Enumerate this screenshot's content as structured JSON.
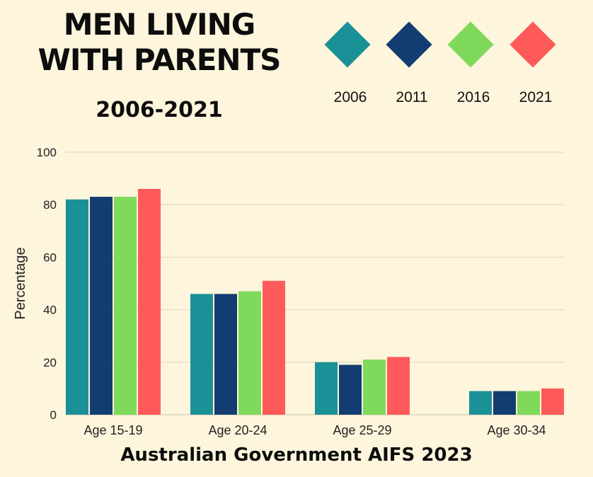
{
  "title": "MEN LIVING WITH PARENTS",
  "subtitle": "2006-2021",
  "source": "Australian Government AIFS 2023",
  "chart_data": {
    "type": "bar",
    "ylabel": "Percentage",
    "xlabel": "",
    "ylim": [
      0,
      100
    ],
    "yticks": [
      0,
      20,
      40,
      60,
      80,
      100
    ],
    "grid": true,
    "legend_position": "top-right",
    "categories": [
      "Age 15-19",
      "Age 20-24",
      "Age 25-29",
      "Age 30-34"
    ],
    "series": [
      {
        "name": "2006",
        "color": "#1a9196",
        "values": [
          82,
          46,
          20,
          9
        ]
      },
      {
        "name": "2011",
        "color": "#133d72",
        "values": [
          83,
          46,
          19,
          9
        ]
      },
      {
        "name": "2016",
        "color": "#7fd95a",
        "values": [
          83,
          47,
          21,
          9
        ]
      },
      {
        "name": "2021",
        "color": "#ff5a5a",
        "values": [
          86,
          51,
          22,
          10
        ]
      }
    ]
  }
}
